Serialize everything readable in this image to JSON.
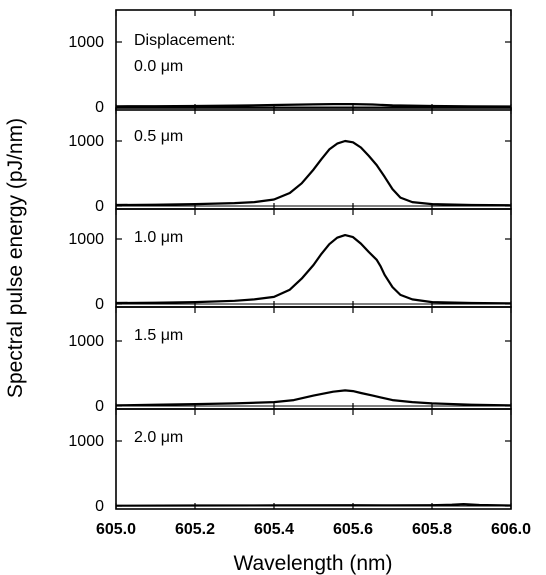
{
  "chart_data": {
    "type": "line",
    "xlabel": "Wavelength (nm)",
    "ylabel": "Spectral pulse energy (pJ/nm)",
    "xlim": [
      605.0,
      606.0
    ],
    "x_ticks": [
      "605.0",
      "605.2",
      "605.4",
      "605.6",
      "605.8",
      "606.0"
    ],
    "x_tick_values": [
      605.0,
      605.2,
      605.4,
      605.6,
      605.8,
      606.0
    ],
    "panel_ylim": [
      0,
      1500
    ],
    "y_ticks": [
      "0",
      "1000"
    ],
    "y_tick_values": [
      0,
      1000
    ],
    "grid": false,
    "legend": "none",
    "line_color": "#000000",
    "panels": [
      {
        "annotation_title": "Displacement:",
        "annotation": "0.0 μm",
        "x": [
          605.0,
          605.1,
          605.2,
          605.3,
          605.4,
          605.5,
          605.55,
          605.6,
          605.65,
          605.7,
          605.8,
          605.9,
          606.0
        ],
        "y": [
          10,
          12,
          15,
          22,
          30,
          40,
          45,
          45,
          38,
          25,
          15,
          10,
          8
        ]
      },
      {
        "annotation": "0.5 μm",
        "x": [
          605.0,
          605.1,
          605.2,
          605.3,
          605.35,
          605.4,
          605.44,
          605.47,
          605.5,
          605.52,
          605.54,
          605.56,
          605.58,
          605.6,
          605.62,
          605.64,
          605.66,
          605.68,
          605.7,
          605.72,
          605.75,
          605.8,
          605.9,
          606.0
        ],
        "y": [
          15,
          20,
          30,
          45,
          60,
          100,
          200,
          350,
          560,
          720,
          870,
          960,
          1000,
          980,
          900,
          770,
          630,
          450,
          260,
          130,
          60,
          30,
          15,
          10
        ]
      },
      {
        "annotation": "1.0 μm",
        "x": [
          605.0,
          605.1,
          605.2,
          605.3,
          605.35,
          605.4,
          605.44,
          605.47,
          605.5,
          605.52,
          605.54,
          605.56,
          605.58,
          605.6,
          605.62,
          605.64,
          605.66,
          605.67,
          605.68,
          605.7,
          605.72,
          605.75,
          605.8,
          605.9,
          606.0
        ],
        "y": [
          15,
          20,
          30,
          50,
          70,
          110,
          220,
          390,
          600,
          770,
          920,
          1020,
          1060,
          1030,
          930,
          800,
          680,
          580,
          450,
          260,
          140,
          70,
          30,
          15,
          10
        ]
      },
      {
        "annotation": "1.5 μm",
        "x": [
          605.0,
          605.1,
          605.2,
          605.3,
          605.4,
          605.45,
          605.5,
          605.55,
          605.58,
          605.6,
          605.62,
          605.65,
          605.7,
          605.75,
          605.8,
          605.9,
          606.0
        ],
        "y": [
          10,
          20,
          30,
          40,
          60,
          90,
          160,
          220,
          240,
          230,
          200,
          160,
          90,
          60,
          40,
          20,
          10
        ]
      },
      {
        "annotation": "2.0 μm",
        "x": [
          605.0,
          605.2,
          605.4,
          605.6,
          605.7,
          605.8,
          605.85,
          605.88,
          605.92,
          606.0
        ],
        "y": [
          5,
          8,
          10,
          12,
          10,
          12,
          20,
          30,
          15,
          8
        ]
      }
    ]
  }
}
